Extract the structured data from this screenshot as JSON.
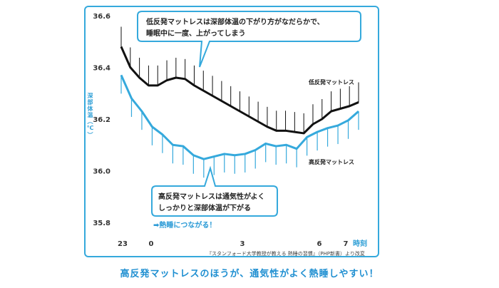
{
  "chart_data": {
    "type": "line",
    "ylabel": "深部体温（℃）",
    "ylim": [
      35.8,
      36.6
    ],
    "y_ticks": [
      36.6,
      36.4,
      36.2,
      36.0,
      35.8
    ],
    "x_ticks": [
      "23",
      "0",
      "3",
      "6",
      "7"
    ],
    "x_unit": "時刻",
    "grid": false,
    "series": [
      {
        "name": "低反発マットレス",
        "color": "#111111",
        "values": [
          36.48,
          36.4,
          36.36,
          36.33,
          36.33,
          36.35,
          36.36,
          36.355,
          36.33,
          36.31,
          36.29,
          36.27,
          36.25,
          36.23,
          36.21,
          36.19,
          36.17,
          36.155,
          36.155,
          36.15,
          36.145,
          36.18,
          36.2,
          36.23,
          36.24,
          36.25,
          36.265
        ]
      },
      {
        "name": "高反発マットレス",
        "color": "#35a9dc",
        "values": [
          36.37,
          36.28,
          36.23,
          36.17,
          36.14,
          36.1,
          36.095,
          36.06,
          36.045,
          36.055,
          36.065,
          36.06,
          36.065,
          36.08,
          36.105,
          36.095,
          36.1,
          36.085,
          36.13,
          36.15,
          36.165,
          36.175,
          36.195,
          36.23
        ]
      }
    ],
    "annotations": {
      "top_bubble": [
        "低反発マットレスは深部体温の下がり方がなだらかで、",
        "睡眠中に一度、上がってしまう"
      ],
      "bottom_bubble": [
        "高反発マットレスは通気性がよく",
        "しっかりと深部体温が下がる"
      ],
      "arrow_note": "➡熱睡につながる！"
    },
    "source": "『スタンフォード大学教授が教える 熱睡の習慣』（PHP新書）より改変"
  },
  "footer": "高反発マットレスのほうが、通気性がよく熱睡しやすい！"
}
